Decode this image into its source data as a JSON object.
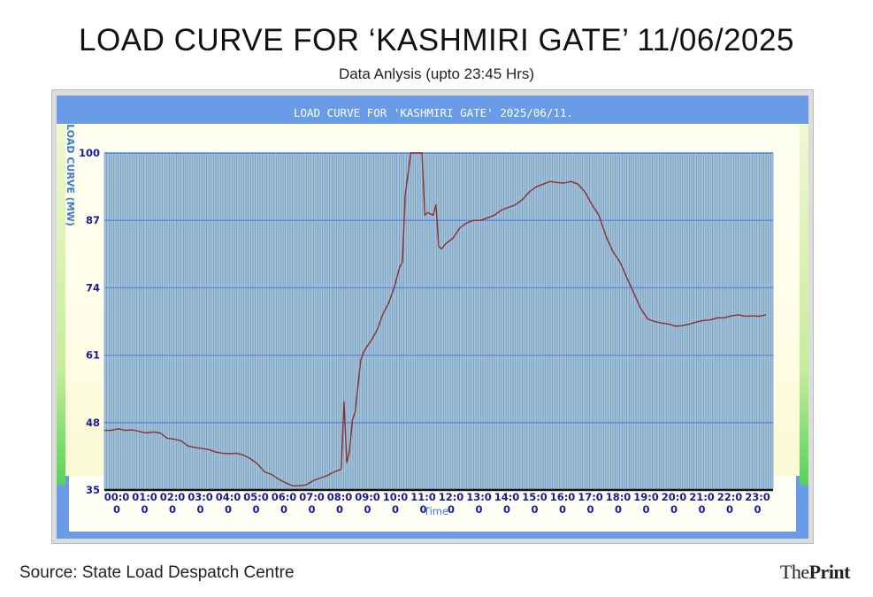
{
  "page": {
    "headline": "LOAD CURVE FOR ‘KASHMIRI GATE’ 11/06/2025",
    "subheadline": "Data Anlysis (upto 23:45 Hrs)",
    "source": "Source: State Load Despatch Centre",
    "brand": {
      "part1": "The",
      "part2": "Print"
    }
  },
  "colors": {
    "frame_blue": "#6a9be6",
    "plot_fill": "#a7c6cf",
    "grid_line": "#5b87d8",
    "curve": "#8b2e2e",
    "axis_text": "#1a1a9a",
    "panel_bg": "#fffff0"
  },
  "chart_data": {
    "type": "line",
    "title": "LOAD CURVE FOR 'KASHMIRI GATE' 2025/06/11.",
    "xlabel": "Time",
    "ylabel": "LOAD CURVE (MW)",
    "ylim": [
      35,
      100
    ],
    "yticks": [
      "35",
      "48",
      "61",
      "74",
      "87",
      "100"
    ],
    "xticks": [
      [
        "00:0",
        "0"
      ],
      [
        "01:0",
        "0"
      ],
      [
        "02:0",
        "0"
      ],
      [
        "03:0",
        "0"
      ],
      [
        "04:0",
        "0"
      ],
      [
        "05:0",
        "0"
      ],
      [
        "06:0",
        "0"
      ],
      [
        "07:0",
        "0"
      ],
      [
        "08:0",
        "0"
      ],
      [
        "09:0",
        "0"
      ],
      [
        "10:0",
        "0"
      ],
      [
        "11:0",
        "0"
      ],
      [
        "12:0",
        "0"
      ],
      [
        "13:0",
        "0"
      ],
      [
        "14:0",
        "0"
      ],
      [
        "15:0",
        "0"
      ],
      [
        "16:0",
        "0"
      ],
      [
        "17:0",
        "0"
      ],
      [
        "18:0",
        "0"
      ],
      [
        "19:0",
        "0"
      ],
      [
        "20:0",
        "0"
      ],
      [
        "21:0",
        "0"
      ],
      [
        "22:0",
        "0"
      ],
      [
        "23:0",
        "0"
      ]
    ],
    "grid": true,
    "series": [
      {
        "x": [
          0,
          0.25,
          0.5,
          0.75,
          1,
          1.25,
          1.5,
          1.75,
          2,
          2.25,
          2.5,
          2.75,
          3,
          3.25,
          3.5,
          3.75,
          4,
          4.25,
          4.5,
          4.75,
          5,
          5.25,
          5.5,
          5.75,
          6,
          6.25,
          6.5,
          6.75,
          7,
          7.25,
          7.5,
          7.75,
          8,
          8.25,
          8.5,
          8.6,
          8.7,
          8.8,
          8.9,
          9,
          9.2,
          9.3,
          9.4,
          9.6,
          9.8,
          10,
          10.2,
          10.4,
          10.5,
          10.6,
          10.7,
          10.8,
          11,
          11.2,
          11.3,
          11.4,
          11.5,
          11.6,
          11.8,
          11.9,
          12,
          12.1,
          12.25,
          12.5,
          12.75,
          13,
          13.25,
          13.5,
          13.75,
          14,
          14.25,
          14.5,
          14.75,
          15,
          15.25,
          15.5,
          15.75,
          16,
          16.25,
          16.5,
          16.75,
          17,
          17.25,
          17.5,
          17.75,
          18,
          18.25,
          18.5,
          18.75,
          19,
          19.25,
          19.5,
          19.75,
          20,
          20.25,
          20.5,
          20.75,
          21,
          21.25,
          21.5,
          21.75,
          22,
          22.25,
          22.5,
          22.75,
          23,
          23.25,
          23.5,
          23.75
        ],
        "y": [
          46.5,
          46.5,
          46.8,
          46.5,
          46.6,
          46.3,
          46,
          46.2,
          46,
          45,
          44.8,
          44.5,
          43.5,
          43.2,
          43,
          42.8,
          42.3,
          42.1,
          42,
          42.1,
          41.7,
          41,
          40,
          38.5,
          38,
          37.1,
          36.4,
          35.8,
          35.8,
          36,
          36.8,
          37.3,
          37.8,
          38.5,
          39,
          52,
          40.3,
          42.5,
          48.5,
          50,
          60,
          61.5,
          62.5,
          64,
          66,
          69,
          71,
          74,
          76,
          78,
          79,
          92,
          100,
          100,
          100,
          100,
          88,
          88.5,
          88,
          90,
          82,
          81.5,
          82.5,
          83.5,
          85.5,
          86.5,
          87,
          87,
          87.5,
          88,
          89,
          89.5,
          90,
          91,
          92.5,
          93.5,
          94,
          94.5,
          94.3,
          94.2,
          94.5,
          94,
          92.5,
          90,
          88,
          84,
          81,
          79,
          76,
          73,
          70,
          68,
          67.5,
          67.2,
          67,
          66.6,
          66.7,
          67,
          67.4,
          67.7,
          67.8,
          68.2,
          68.2,
          68.6,
          68.8,
          68.5,
          68.6,
          68.5,
          68.8
        ]
      }
    ]
  }
}
